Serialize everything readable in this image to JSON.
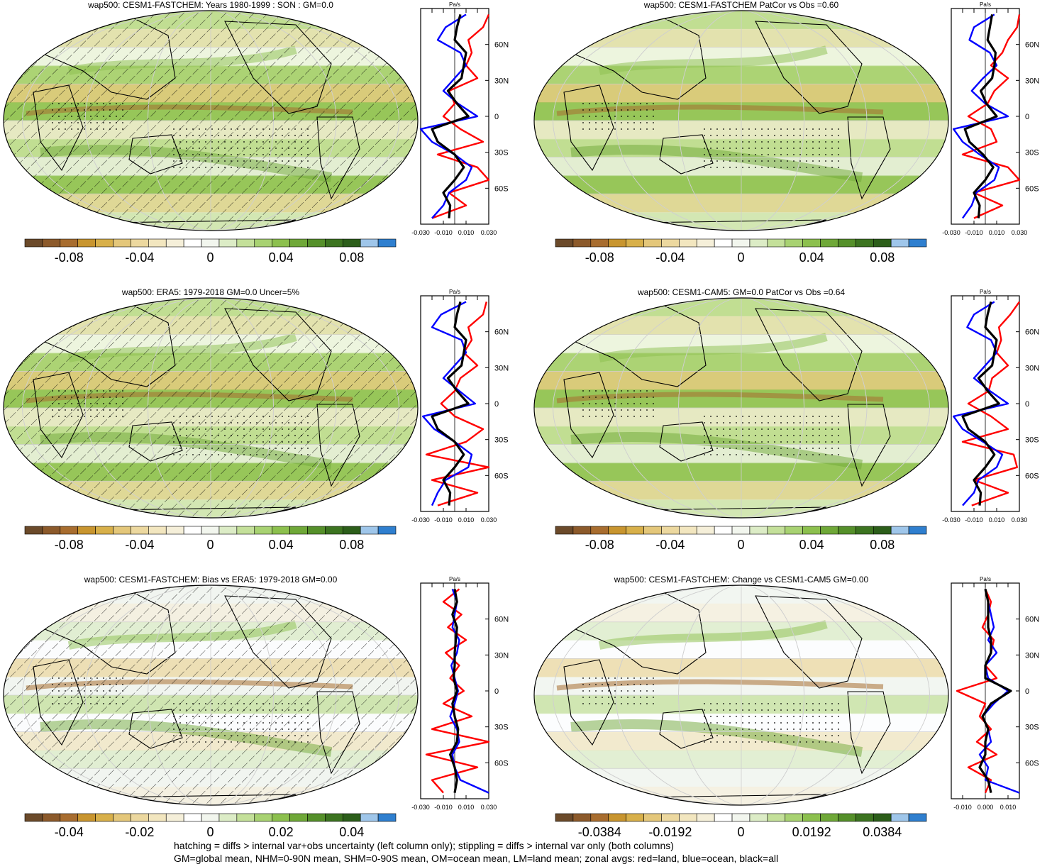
{
  "panels": [
    {
      "title": "wap500: CESM1-FASTCHEM: Years 1980-1999 : SON : GM=0.0",
      "colorbar_ticks": [
        "-0.08",
        "-0.04",
        "0",
        "0.04",
        "0.08"
      ],
      "zonal_x_ticks": [
        "-0.030",
        "-0.010",
        "0.010",
        "0.030"
      ],
      "zonal_unit": "Pa/s",
      "hatched": true
    },
    {
      "title": "wap500: CESM1-FASTCHEM PatCor vs Obs =0.60",
      "colorbar_ticks": [
        "-0.08",
        "-0.04",
        "0",
        "0.04",
        "0.08"
      ],
      "zonal_x_ticks": [
        "-0.030",
        "-0.010",
        "0.010",
        "0.030"
      ],
      "zonal_unit": "Pa/s",
      "hatched": false
    },
    {
      "title": "wap500: ERA5: 1979-2018 GM=0.0 Uncer=5%",
      "colorbar_ticks": [
        "-0.08",
        "-0.04",
        "0",
        "0.04",
        "0.08"
      ],
      "zonal_x_ticks": [
        "-0.030",
        "-0.010",
        "0.010",
        "0.030"
      ],
      "zonal_unit": "Pa/s",
      "hatched": true
    },
    {
      "title": "wap500: CESM1-CAM5: GM=0.0 PatCor vs Obs =0.64",
      "colorbar_ticks": [
        "-0.08",
        "-0.04",
        "0",
        "0.04",
        "0.08"
      ],
      "zonal_x_ticks": [
        "-0.030",
        "-0.010",
        "0.010",
        "0.030"
      ],
      "zonal_unit": "Pa/s",
      "hatched": false
    },
    {
      "title": "wap500: CESM1-FASTCHEM: Bias vs ERA5: 1979-2018  GM=0.00",
      "colorbar_ticks": [
        "-0.04",
        "-0.02",
        "0",
        "0.02",
        "0.04"
      ],
      "zonal_x_ticks": [
        "-0.030",
        "-0.010",
        "0.010",
        "0.030"
      ],
      "zonal_unit": "Pa/s",
      "hatched": true
    },
    {
      "title": "wap500: CESM1-FASTCHEM: Change vs CESM1-CAM5 GM=0.00",
      "colorbar_ticks": [
        "-0.0384",
        "-0.0192",
        "0",
        "0.0192",
        "0.0384"
      ],
      "zonal_x_ticks": [
        "-0.010",
        "0.000",
        "0.010"
      ],
      "zonal_unit": "Pa/s",
      "hatched": false
    }
  ],
  "lat_ticks": [
    "60N",
    "30N",
    "0",
    "30S",
    "60S"
  ],
  "colors": {
    "land": "#ff0000",
    "ocean": "#0000ff",
    "all": "#000000",
    "colorbar": [
      "#6b4a2a",
      "#8c5a2b",
      "#a86d2f",
      "#c8952f",
      "#d8b04a",
      "#e4c77a",
      "#ecd89f",
      "#f2e6bf",
      "#f5efd9",
      "#ffffff",
      "#f2f6ee",
      "#dcecc6",
      "#c4e09a",
      "#a8d272",
      "#8cc04e",
      "#6fa838",
      "#55902a",
      "#3c7420",
      "#2c5e1a",
      "#9fc6ea",
      "#2f7fcf"
    ],
    "map_bg": "#b7d67e"
  },
  "chart_data": [
    {
      "type": "line",
      "y_axis": "latitude",
      "ylim": [
        -90,
        90
      ],
      "xlim": [
        -0.03,
        0.03
      ],
      "series": [
        {
          "values_land": [
            -0.02,
            0.01,
            -0.005,
            0.03,
            0.02,
            -0.015,
            0.025,
            0.005,
            -0.01,
            0.0,
            -0.005,
            0.02,
            0.01,
            0.015,
            0.012,
            0.025,
            0.03
          ],
          "values_ocean": [
            -0.02,
            -0.01,
            -0.005,
            0.01,
            0.015,
            0.0,
            -0.02,
            -0.03,
            0.02,
            0.003,
            -0.01,
            0.0,
            0.01,
            0.005,
            -0.015,
            -0.008,
            0.01
          ],
          "values_all": [
            -0.005,
            -0.004,
            -0.01,
            0.0,
            0.008,
            0.0,
            -0.015,
            -0.02,
            0.012,
            0.002,
            -0.006,
            0.006,
            0.008,
            0.01,
            0.0,
            0.002,
            0.005
          ]
        }
      ]
    },
    {
      "type": "line",
      "y_axis": "latitude",
      "ylim": [
        -90,
        90
      ],
      "xlim": [
        -0.03,
        0.03
      ],
      "series": [
        {
          "values_land": [
            -0.01,
            0.015,
            -0.01,
            0.03,
            0.02,
            -0.02,
            0.01,
            0.005,
            -0.015,
            0.002,
            0.008,
            0.02,
            0.005,
            0.015,
            0.02,
            0.028,
            0.03
          ],
          "values_ocean": [
            -0.02,
            -0.012,
            -0.008,
            0.008,
            0.012,
            -0.005,
            -0.02,
            -0.028,
            0.02,
            0.0,
            -0.012,
            -0.002,
            0.01,
            0.004,
            -0.014,
            -0.01,
            0.008
          ],
          "values_all": [
            -0.006,
            -0.005,
            -0.01,
            0.0,
            0.007,
            -0.002,
            -0.014,
            -0.018,
            0.01,
            0.001,
            -0.004,
            0.006,
            0.008,
            0.009,
            0.002,
            0.004,
            0.006
          ]
        }
      ]
    },
    {
      "type": "line",
      "y_axis": "latitude",
      "ylim": [
        -90,
        90
      ],
      "xlim": [
        -0.03,
        0.03
      ],
      "series": [
        {
          "values_land": [
            -0.015,
            0.02,
            -0.02,
            0.03,
            -0.025,
            0.01,
            0.025,
            0.0,
            -0.012,
            0.0,
            0.005,
            0.02,
            0.008,
            0.015,
            0.012,
            0.025,
            0.028
          ],
          "values_ocean": [
            -0.02,
            -0.015,
            -0.008,
            0.012,
            0.015,
            0.0,
            -0.018,
            -0.028,
            0.018,
            0.004,
            -0.01,
            0.0,
            0.01,
            0.006,
            -0.02,
            -0.012,
            0.01
          ],
          "values_all": [
            -0.005,
            -0.004,
            -0.01,
            0.0,
            0.008,
            0.0,
            -0.015,
            -0.02,
            0.012,
            0.002,
            -0.006,
            0.006,
            0.008,
            0.01,
            0.0,
            0.002,
            0.005
          ]
        }
      ]
    },
    {
      "type": "line",
      "y_axis": "latitude",
      "ylim": [
        -90,
        90
      ],
      "xlim": [
        -0.03,
        0.03
      ],
      "series": [
        {
          "values_land": [
            -0.012,
            0.02,
            -0.01,
            0.028,
            0.025,
            -0.02,
            0.02,
            0.005,
            -0.015,
            0.003,
            0.006,
            0.02,
            0.01,
            0.014,
            0.012,
            0.022,
            0.03
          ],
          "values_ocean": [
            -0.02,
            -0.01,
            -0.006,
            0.01,
            0.015,
            -0.002,
            -0.02,
            -0.028,
            0.02,
            0.004,
            -0.01,
            0.0,
            0.01,
            0.005,
            -0.016,
            -0.01,
            0.008
          ],
          "values_all": [
            -0.005,
            -0.004,
            -0.01,
            0.0,
            0.008,
            0.0,
            -0.015,
            -0.02,
            0.012,
            0.002,
            -0.006,
            0.006,
            0.008,
            0.01,
            0.0,
            0.002,
            0.005
          ]
        }
      ]
    },
    {
      "type": "line",
      "y_axis": "latitude",
      "ylim": [
        -90,
        90
      ],
      "xlim": [
        -0.03,
        0.03
      ],
      "series": [
        {
          "values_land": [
            -0.01,
            -0.02,
            0.02,
            -0.025,
            0.03,
            -0.02,
            0.015,
            -0.01,
            0.008,
            -0.004,
            0.004,
            -0.008,
            0.01,
            -0.006,
            0.006,
            -0.01,
            0.004
          ],
          "values_ocean": [
            0.03,
            0.005,
            0.0,
            -0.002,
            0.004,
            0.002,
            -0.004,
            0.0,
            0.003,
            0.0,
            -0.003,
            0.002,
            0.004,
            -0.002,
            0.0,
            0.002,
            -0.002
          ],
          "values_all": [
            0.0,
            0.002,
            0.0,
            -0.004,
            0.002,
            0.003,
            0.0,
            -0.002,
            0.002,
            -0.001,
            0.0,
            0.0,
            0.001,
            0.002,
            -0.002,
            0.002,
            0.0
          ]
        }
      ]
    },
    {
      "type": "line",
      "y_axis": "latitude",
      "ylim": [
        -90,
        90
      ],
      "xlim": [
        -0.012,
        0.012
      ],
      "series": [
        {
          "values_land": [
            0.0,
            0.002,
            -0.006,
            0.004,
            -0.003,
            0.002,
            -0.002,
            0.0,
            -0.01,
            0.004,
            0.0,
            0.002,
            0.003,
            -0.001,
            0.001,
            0.002,
            0.0
          ],
          "values_ocean": [
            0.014,
            0.0,
            0.001,
            -0.002,
            0.002,
            0.001,
            -0.001,
            0.003,
            0.008,
            0.001,
            0.0,
            0.004,
            0.001,
            0.003,
            0.002,
            0.001,
            0.0
          ],
          "values_all": [
            0.002,
            0.001,
            -0.002,
            0.0,
            0.0,
            0.001,
            -0.001,
            0.002,
            0.009,
            0.0,
            0.0,
            0.002,
            0.002,
            0.001,
            0.001,
            0.001,
            0.0
          ]
        }
      ]
    }
  ],
  "footer": {
    "line1": "hatching = diffs > internal var+obs uncertainty (left column only); stippling = diffs > internal var only (both columns)",
    "line2": "GM=global mean, NHM=0-90N mean, SHM=0-90S mean, OM=ocean mean, LM=land mean; zonal avgs: red=land, blue=ocean, black=all"
  }
}
